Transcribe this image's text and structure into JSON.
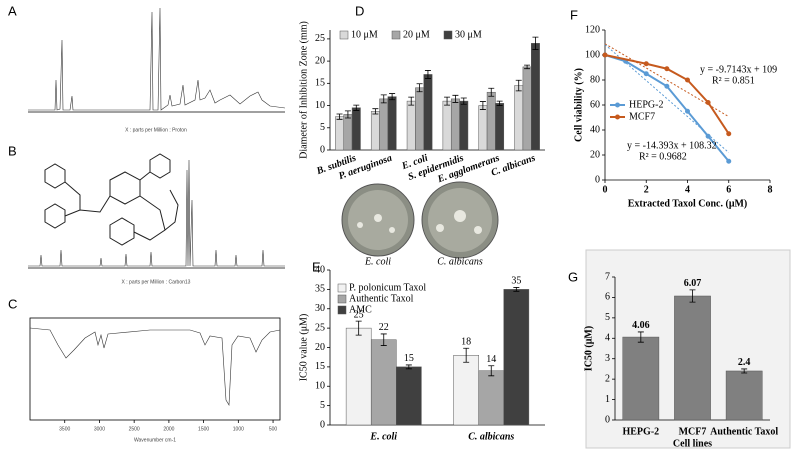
{
  "chart_data": [
    {
      "type": "spectrum",
      "label": "A",
      "xlabel": "X : parts per Million : Proton"
    },
    {
      "type": "spectrum",
      "label": "B",
      "xlabel": "X : parts per Million : Carbon13"
    },
    {
      "type": "spectrum",
      "label": "C",
      "xlabel": "Wavenumber cm-1",
      "xlim": [
        4000,
        400
      ],
      "xticks": [
        3500,
        3000,
        2500,
        2000,
        1500,
        1000,
        500
      ]
    },
    {
      "type": "bar",
      "label": "D",
      "ylabel": "Diameter of Inhibition Zone (mm)",
      "categories": [
        "B. subtilis",
        "P. aeruginosa",
        "E. coli",
        "S. epidermidis",
        "E. agglomerans",
        "C. albicans"
      ],
      "series": [
        {
          "name": "10 μM",
          "color": "#d9d9d9",
          "values": [
            7.5,
            8.7,
            11,
            11,
            10,
            14.5
          ],
          "errors": [
            0.6,
            0.6,
            0.9,
            0.9,
            0.9,
            1.2
          ]
        },
        {
          "name": "20 μM",
          "color": "#a6a6a6",
          "values": [
            8,
            11.5,
            14,
            11.5,
            13,
            18.7
          ],
          "errors": [
            0.8,
            0.9,
            0.9,
            0.8,
            0.9,
            0.4
          ]
        },
        {
          "name": "30 μM",
          "color": "#404040",
          "values": [
            9.5,
            12,
            17,
            11,
            10.5,
            24
          ],
          "errors": [
            0.6,
            0.7,
            0.9,
            0.7,
            0.5,
            1.4
          ]
        }
      ],
      "ylim": [
        0,
        27
      ],
      "yticks": [
        0,
        5,
        10,
        15,
        20,
        25
      ],
      "legend": "top",
      "rotate_labels": true,
      "image_captions": [
        "E. coli",
        "C. albicans"
      ]
    },
    {
      "type": "bar",
      "label": "E",
      "ylabel": "IC50 value (μM)",
      "categories": [
        "E. coli",
        "C. albicans"
      ],
      "series": [
        {
          "name": "P. polonicum Taxol",
          "color": "#f2f2f2",
          "values": [
            25,
            18
          ],
          "errors": [
            1.8,
            1.8
          ]
        },
        {
          "name": "Authentic Taxol",
          "color": "#a6a6a6",
          "values": [
            22,
            14
          ],
          "errors": [
            1.5,
            1.3
          ]
        },
        {
          "name": "AMC",
          "color": "#404040",
          "values": [
            15,
            35
          ],
          "errors": [
            0.5,
            0.5
          ]
        }
      ],
      "ylim": [
        0,
        40
      ],
      "yticks": [
        0,
        5,
        10,
        15,
        20,
        25,
        30,
        35,
        40
      ],
      "legend": "upper left",
      "show_values": true
    },
    {
      "type": "line",
      "label": "F",
      "xlabel": "Extracted Taxol Conc. (μM)",
      "ylabel": "Cell viability (%)",
      "series": [
        {
          "name": "HEPG-2",
          "color": "#5b9bd5",
          "x": [
            0,
            1,
            2,
            3,
            4,
            5,
            6
          ],
          "values": [
            100,
            95,
            85,
            75,
            55,
            35,
            15
          ],
          "trend": {
            "slope": -14.393,
            "intercept": 108.32,
            "equation": "y = -14.393x + 108.32",
            "r2": "R² = 0.9682"
          }
        },
        {
          "name": "MCF7",
          "color": "#c65a1e",
          "x": [
            0,
            2,
            3,
            4,
            5,
            6
          ],
          "values": [
            100,
            93,
            89,
            80,
            62,
            37
          ],
          "trend": {
            "slope": -9.7143,
            "intercept": 109,
            "equation": "y = -9.7143x + 109",
            "r2": "R² = 0.851"
          }
        }
      ],
      "xlim": [
        0,
        8
      ],
      "xticks": [
        0,
        2,
        4,
        6,
        8
      ],
      "ylim": [
        0,
        120
      ],
      "yticks": [
        0,
        20,
        40,
        60,
        80,
        100,
        120
      ],
      "legend": "center left"
    },
    {
      "type": "bar",
      "label": "G",
      "ylabel": "IC50 (μM)",
      "xlabel": "Cell lines",
      "categories": [
        "HEPG-2",
        "MCF7",
        "Authentic Taxol"
      ],
      "values": [
        4.06,
        6.07,
        2.4
      ],
      "errors": [
        0.25,
        0.3,
        0.1
      ],
      "color": "#808080",
      "ylim": [
        0,
        7
      ],
      "yticks": [
        0,
        1,
        2,
        3,
        4,
        5,
        6,
        7
      ],
      "show_values": true
    }
  ]
}
